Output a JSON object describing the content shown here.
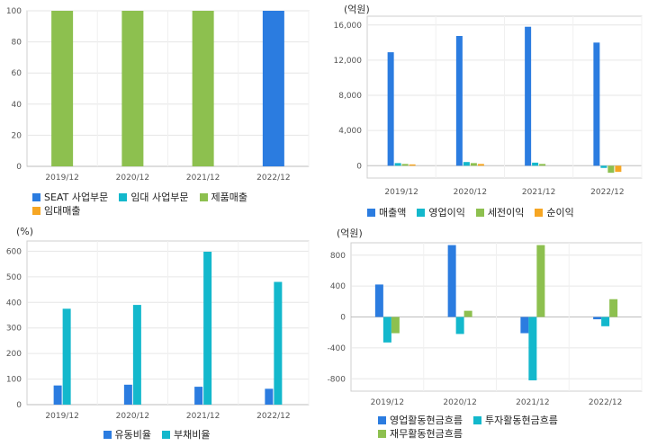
{
  "chart_data": [
    {
      "type": "bar",
      "categories": [
        "2019/12",
        "2020/12",
        "2021/12",
        "2022/12"
      ],
      "series": [
        {
          "name": "SEAT 사업부문",
          "color": "#2b7ce0",
          "values": [
            0,
            0,
            0,
            100
          ]
        },
        {
          "name": "임대 사업부문",
          "color": "#13b8cc",
          "values": [
            0,
            0,
            0,
            0
          ]
        },
        {
          "name": "제품매출",
          "color": "#8dc04f",
          "values": [
            100,
            100,
            100,
            0
          ]
        },
        {
          "name": "임대매출",
          "color": "#f6a623",
          "values": [
            0,
            0,
            0,
            0
          ]
        }
      ],
      "stacked": true,
      "ylim": [
        0,
        100
      ],
      "yticks": [
        0,
        20,
        40,
        60,
        80,
        100
      ],
      "ytick_labels": [
        "0",
        "20",
        "40",
        "60",
        "80",
        "100"
      ],
      "unit_label": "",
      "grid": true,
      "legend_position": "bottom-left"
    },
    {
      "type": "bar",
      "categories": [
        "2019/12",
        "2020/12",
        "2021/12",
        "2022/12"
      ],
      "series": [
        {
          "name": "매출액",
          "color": "#2b7ce0",
          "values": [
            12900,
            14750,
            15800,
            14000
          ]
        },
        {
          "name": "영업이익",
          "color": "#13b8cc",
          "values": [
            300,
            420,
            350,
            -250
          ]
        },
        {
          "name": "세전이익",
          "color": "#8dc04f",
          "values": [
            200,
            300,
            200,
            -800
          ]
        },
        {
          "name": "순이익",
          "color": "#f6a623",
          "values": [
            150,
            200,
            0,
            -700
          ]
        }
      ],
      "ylim": [
        -1400,
        17000
      ],
      "yticks": [
        0,
        4000,
        8000,
        12000,
        16000
      ],
      "ytick_labels": [
        "0",
        "4,000",
        "8,000",
        "12,000",
        "16,000"
      ],
      "unit_label": "(억원)",
      "grid": true,
      "legend_position": "bottom-left"
    },
    {
      "type": "bar",
      "categories": [
        "2019/12",
        "2020/12",
        "2021/12",
        "2022/12"
      ],
      "series": [
        {
          "name": "유동비율",
          "color": "#2b7ce0",
          "values": [
            75,
            78,
            70,
            62
          ]
        },
        {
          "name": "부채비율",
          "color": "#13b8cc",
          "values": [
            375,
            390,
            598,
            480
          ]
        }
      ],
      "ylim": [
        0,
        640
      ],
      "yticks": [
        0,
        100,
        200,
        300,
        400,
        500,
        600
      ],
      "ytick_labels": [
        "0",
        "100",
        "200",
        "300",
        "400",
        "500",
        "600"
      ],
      "unit_label": "(%)",
      "grid": true,
      "legend_position": "bottom-center"
    },
    {
      "type": "bar",
      "categories": [
        "2019/12",
        "2020/12",
        "2021/12",
        "2022/12"
      ],
      "series": [
        {
          "name": "영업활동현금흐름",
          "color": "#2b7ce0",
          "values": [
            420,
            930,
            -210,
            -30
          ]
        },
        {
          "name": "투자활동현금흐름",
          "color": "#13b8cc",
          "values": [
            -330,
            -220,
            -820,
            -120
          ]
        },
        {
          "name": "재무활동현금흐름",
          "color": "#8dc04f",
          "values": [
            -210,
            80,
            930,
            230
          ]
        }
      ],
      "ylim": [
        -960,
        960
      ],
      "yticks": [
        -800,
        -400,
        0,
        400,
        800
      ],
      "ytick_labels": [
        "-800",
        "-400",
        "0",
        "400",
        "800"
      ],
      "unit_label": "(억원)",
      "grid": true,
      "legend_position": "bottom-center"
    }
  ]
}
